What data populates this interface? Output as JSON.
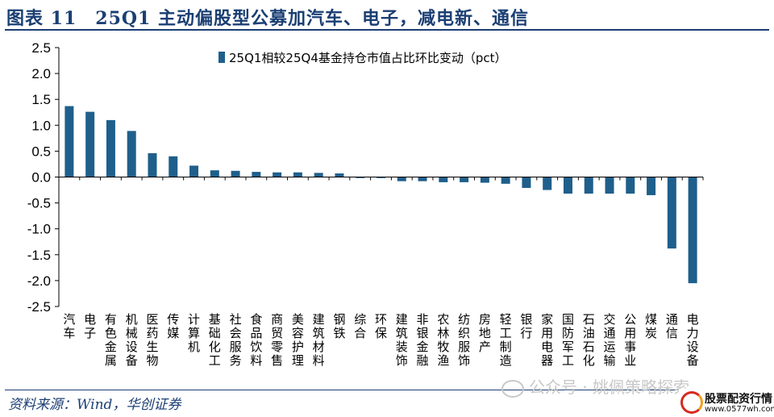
{
  "header": {
    "title": "图表 11　25Q1 主动偏股型公募加汽车、电子，减电新、通信"
  },
  "footer": {
    "source": "资料来源：Wind，华创证券"
  },
  "watermark": {
    "text": "公众号 · 姚佩策略探索",
    "icon": "wechat-icon"
  },
  "logo": {
    "name": "股票配资行情",
    "url": "www.0577wh.com"
  },
  "colors": {
    "bar": "#1f5f8b",
    "accent": "#1b3f73",
    "axis": "#000000"
  },
  "chart_data": {
    "type": "bar",
    "legend_position": "top",
    "grid": false,
    "ylim": [
      -2.5,
      2.5
    ],
    "yticks": [
      2.5,
      2.0,
      1.5,
      1.0,
      0.5,
      0.0,
      -0.5,
      -1.0,
      -1.5,
      -2.0,
      -2.5
    ],
    "ytick_labels": [
      "2.5",
      "2.0",
      "1.5",
      "1.0",
      "0.5",
      "0.0",
      "-0.5",
      "-1.0",
      "-1.5",
      "-2.0",
      "-2.5"
    ],
    "categories": [
      "汽车",
      "电子",
      "有色金属",
      "机械设备",
      "医药生物",
      "传媒",
      "计算机",
      "基础化工",
      "社会服务",
      "食品饮料",
      "商贸零售",
      "美容护理",
      "建筑材料",
      "钢铁",
      "综合",
      "环保",
      "建筑装饰",
      "非银金融",
      "农林牧渔",
      "纺织服饰",
      "房地产",
      "轻工制造",
      "银行",
      "家用电器",
      "国防军工",
      "石油石化",
      "交通运输",
      "公用事业",
      "煤炭",
      "通信",
      "电力设备"
    ],
    "series": [
      {
        "name": "25Q1相较25Q4基金持仓市值占比环比变动（pct）",
        "values": [
          1.37,
          1.26,
          1.1,
          0.89,
          0.46,
          0.4,
          0.22,
          0.13,
          0.12,
          0.1,
          0.09,
          0.09,
          0.08,
          0.07,
          -0.02,
          -0.02,
          -0.08,
          -0.08,
          -0.1,
          -0.1,
          -0.11,
          -0.13,
          -0.21,
          -0.25,
          -0.32,
          -0.32,
          -0.32,
          -0.32,
          -0.35,
          -1.38,
          -2.05
        ]
      }
    ]
  }
}
